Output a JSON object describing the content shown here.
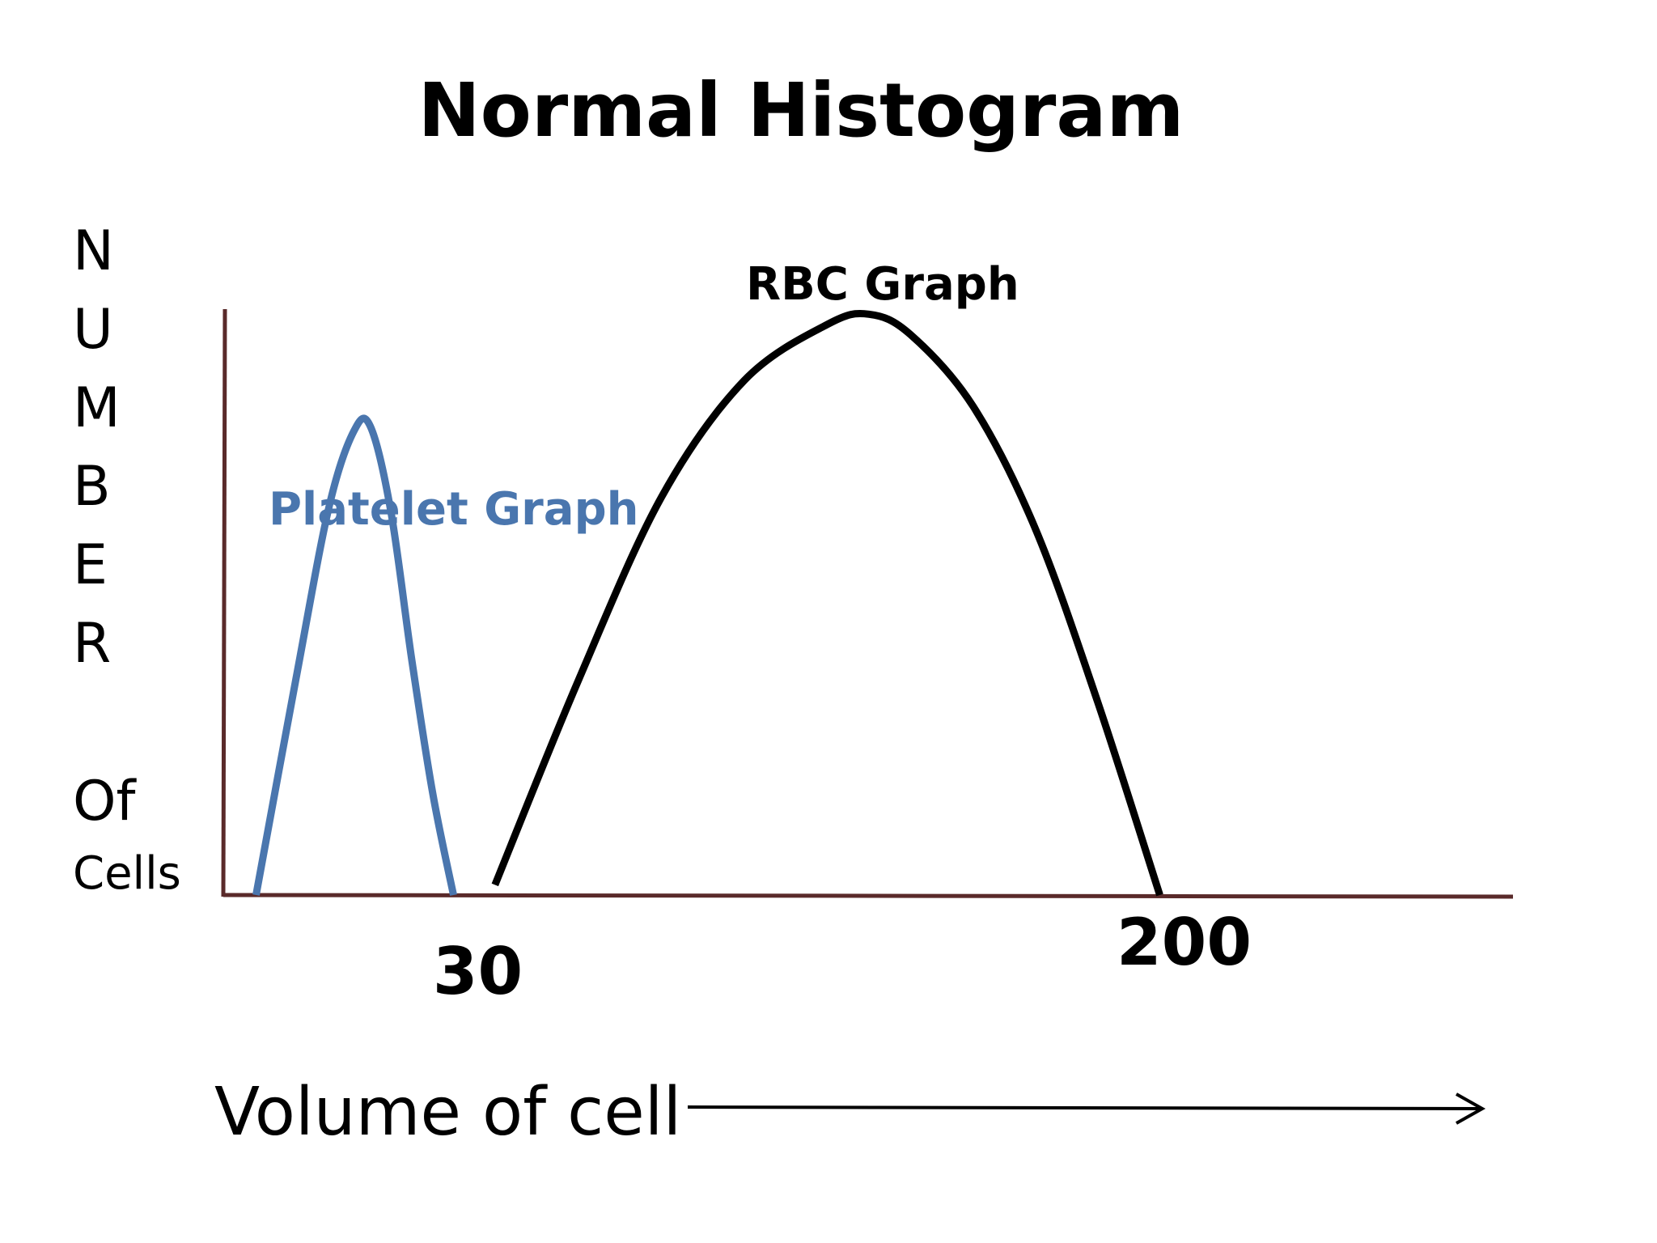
{
  "chart_data": {
    "type": "line",
    "title": "Normal Histogram",
    "ylabel_letters": [
      "N",
      "U",
      "M",
      "B",
      "E",
      "R"
    ],
    "ylabel_of": "Of",
    "ylabel_cells": "Cells",
    "xlabel": "Volume of cell",
    "x_ticks": [
      {
        "value": 30,
        "label": "30"
      },
      {
        "value": 200,
        "label": "200"
      }
    ],
    "xlim": [
      -25,
      285
    ],
    "ylim": [
      0,
      1.15
    ],
    "grid": false,
    "series": [
      {
        "name": "Platelet Graph",
        "color": "#4a76ae",
        "x": [
          -17.5,
          -8,
          0,
          6,
          10,
          15,
          20,
          25,
          30
        ],
        "y": [
          0,
          0.42,
          0.76,
          0.91,
          0.92,
          0.75,
          0.46,
          0.2,
          0
        ]
      },
      {
        "name": "RBC Graph",
        "color": "#000000",
        "x": [
          40,
          60,
          80,
          100,
          120,
          130,
          140,
          155,
          170,
          185,
          200
        ],
        "y": [
          0.02,
          0.42,
          0.78,
          1.01,
          1.12,
          1.14,
          1.1,
          0.96,
          0.72,
          0.38,
          0
        ]
      }
    ]
  },
  "colors": {
    "axis": "#5a2a2a",
    "platelet": "#4a76ae",
    "rbc": "#000000"
  }
}
